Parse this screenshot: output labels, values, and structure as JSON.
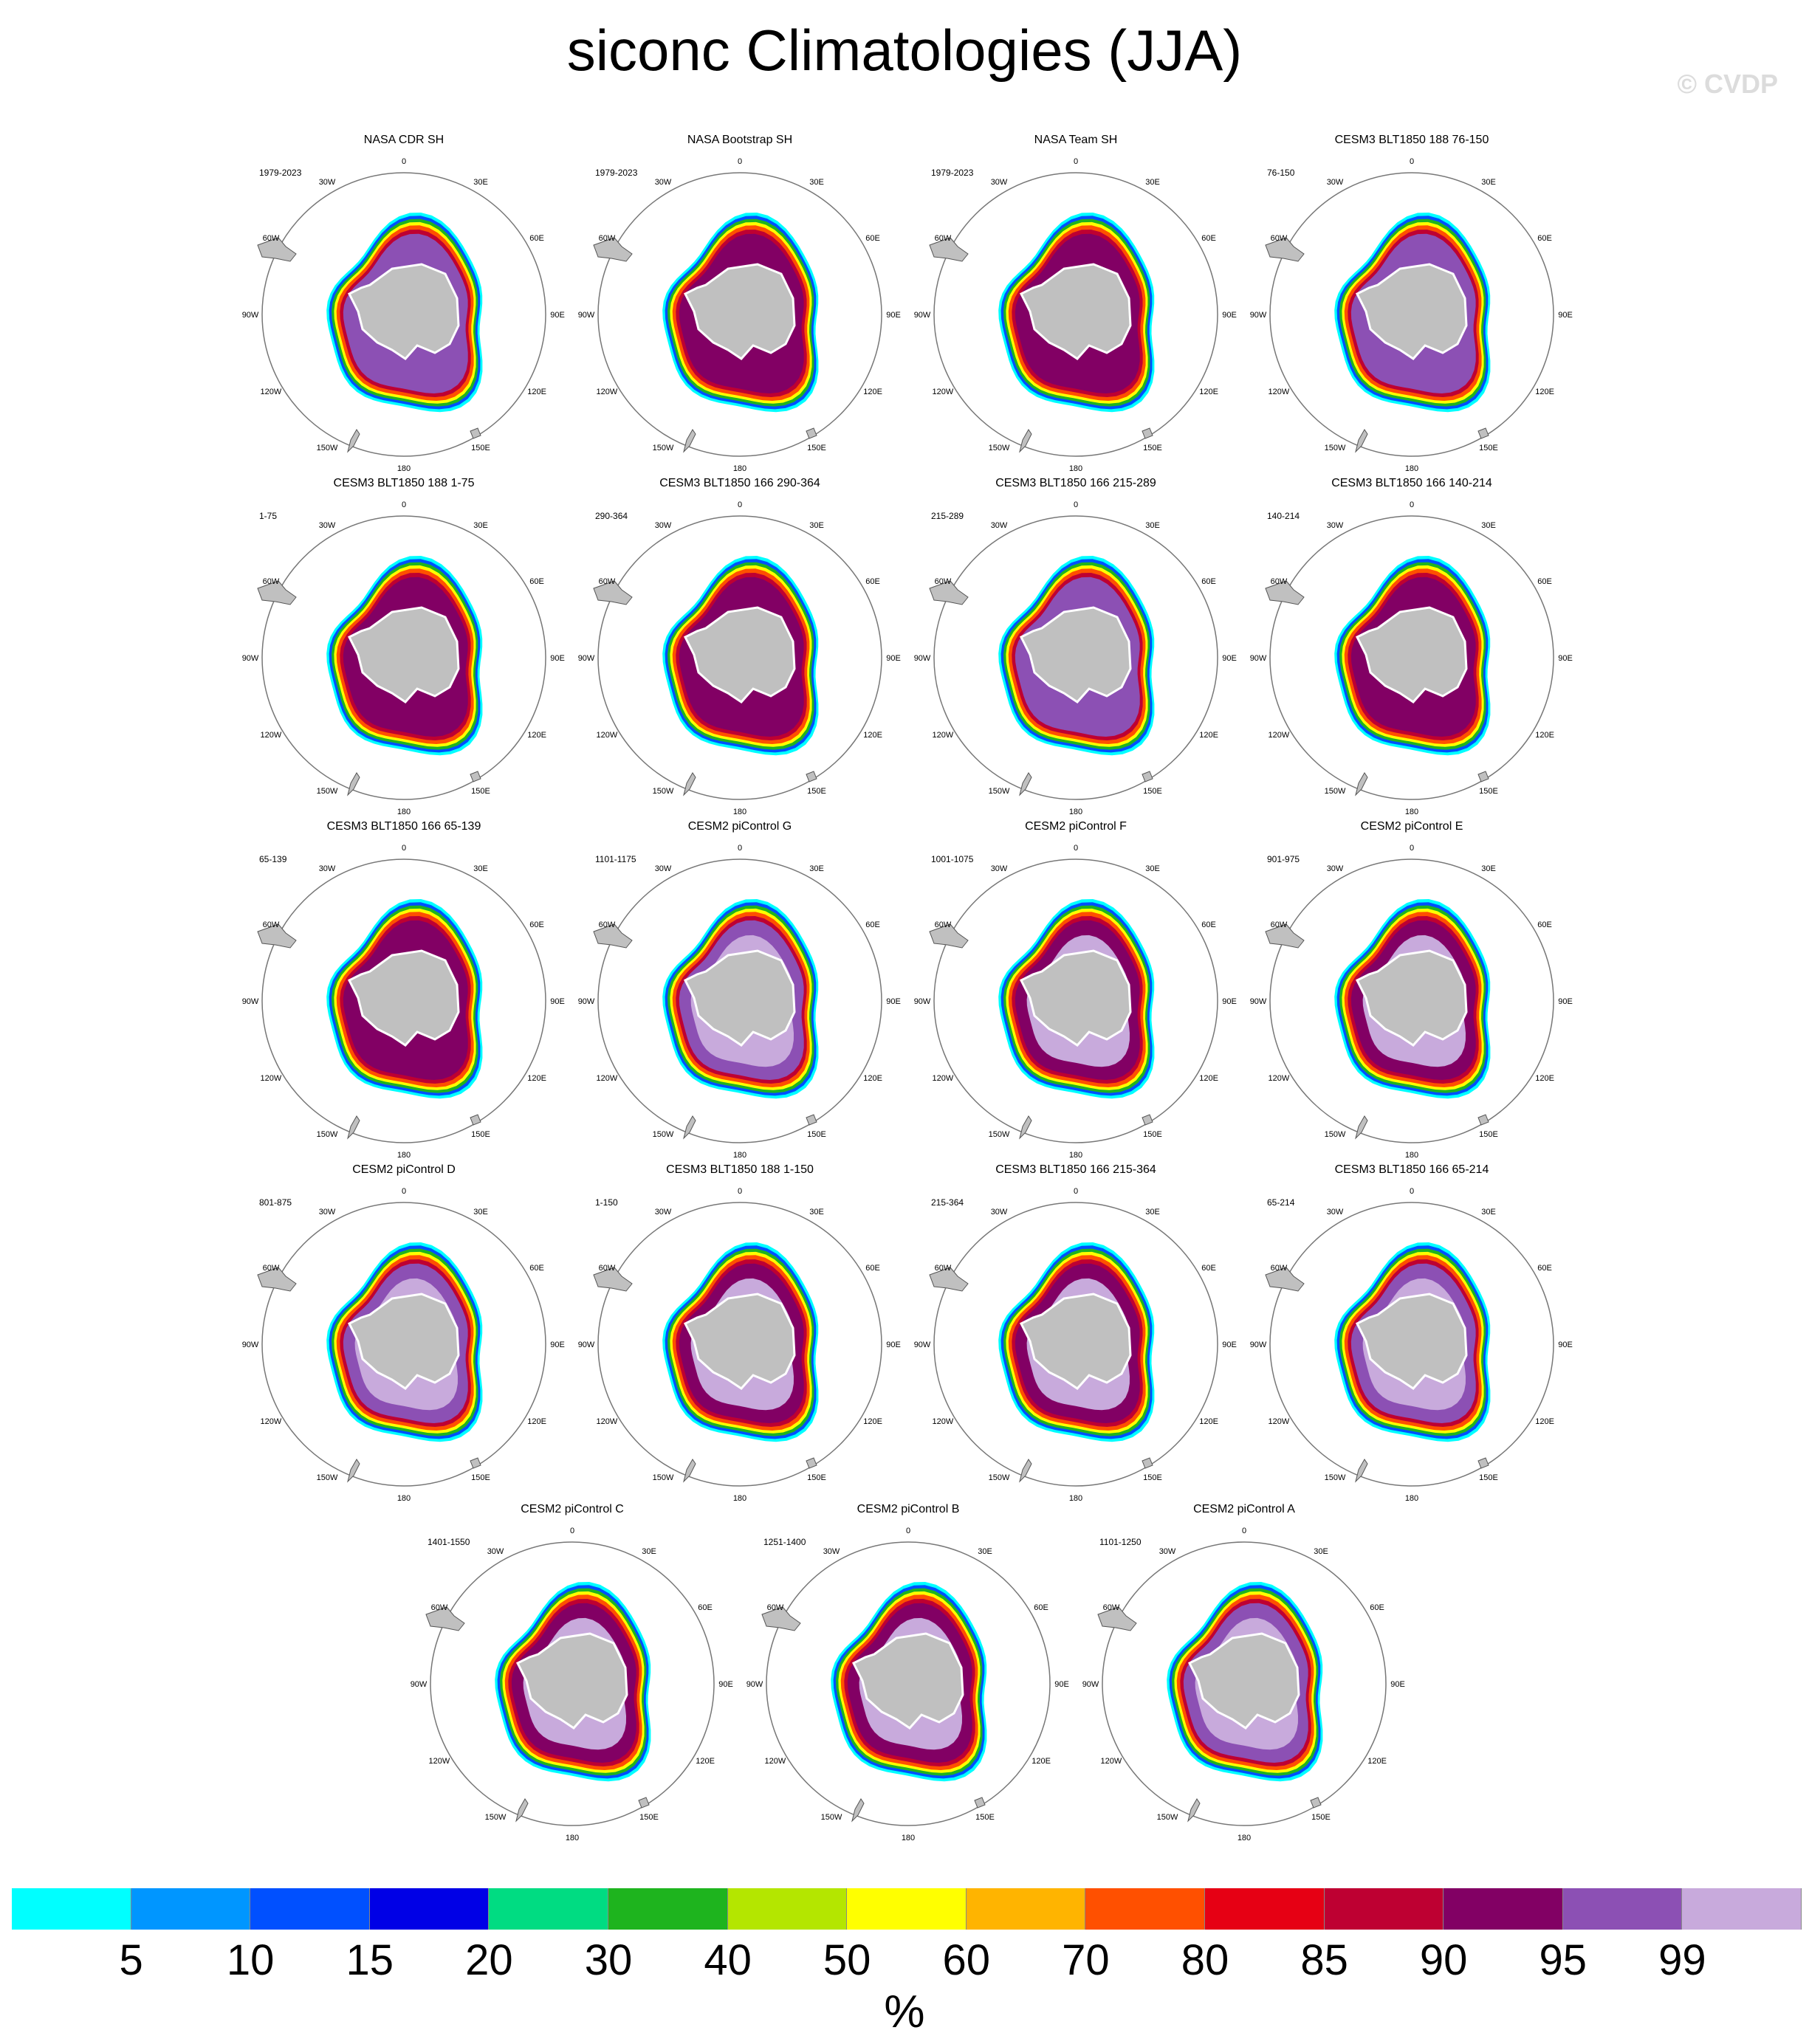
{
  "title": "siconc Climatologies (JJA)",
  "watermark": "© CVDP",
  "colorbar": {
    "units": "%",
    "labels": [
      "5",
      "10",
      "15",
      "20",
      "30",
      "40",
      "50",
      "60",
      "70",
      "80",
      "85",
      "90",
      "95",
      "99"
    ],
    "colors": [
      "#00ffff",
      "#0096ff",
      "#0050ff",
      "#0000e6",
      "#00dc82",
      "#1eb41e",
      "#b4e600",
      "#ffff00",
      "#ffb400",
      "#ff5000",
      "#e60014",
      "#be0032",
      "#820064",
      "#8c50b4",
      "#c8aadc"
    ]
  },
  "colors": {
    "land": "#c0c0c0",
    "land_outline": "#555555",
    "circle": "#777777"
  },
  "longitude_labels": [
    "0",
    "30E",
    "60E",
    "90E",
    "120E",
    "150E",
    "180",
    "150W",
    "120W",
    "90W",
    "60W",
    "30W"
  ],
  "panels": [
    {
      "title": "NASA CDR SH",
      "range": "1979-2023"
    },
    {
      "title": "NASA Bootstrap SH",
      "range": "1979-2023"
    },
    {
      "title": "NASA Team SH",
      "range": "1979-2023"
    },
    {
      "title": "CESM3 BLT1850 188 76-150",
      "range": "76-150"
    },
    {
      "title": "CESM3 BLT1850 188 1-75",
      "range": "1-75"
    },
    {
      "title": "CESM3 BLT1850 166 290-364",
      "range": "290-364"
    },
    {
      "title": "CESM3 BLT1850 166 215-289",
      "range": "215-289"
    },
    {
      "title": "CESM3 BLT1850 166 140-214",
      "range": "140-214"
    },
    {
      "title": "CESM3 BLT1850 166 65-139",
      "range": "65-139"
    },
    {
      "title": "CESM2 piControl G",
      "range": "1101-1175"
    },
    {
      "title": "CESM2 piControl F",
      "range": "1001-1075"
    },
    {
      "title": "CESM2 piControl E",
      "range": "901-975"
    },
    {
      "title": "CESM2 piControl D",
      "range": "801-875"
    },
    {
      "title": "CESM3 BLT1850 188 1-150",
      "range": "1-150"
    },
    {
      "title": "CESM3 BLT1850 166 215-364",
      "range": "215-364"
    },
    {
      "title": "CESM3 BLT1850 166 65-214",
      "range": "65-214"
    },
    {
      "title": "CESM2 piControl C",
      "range": "1401-1550"
    },
    {
      "title": "CESM2 piControl B",
      "range": "1251-1400"
    },
    {
      "title": "CESM2 piControl A",
      "range": "1101-1250"
    }
  ]
}
